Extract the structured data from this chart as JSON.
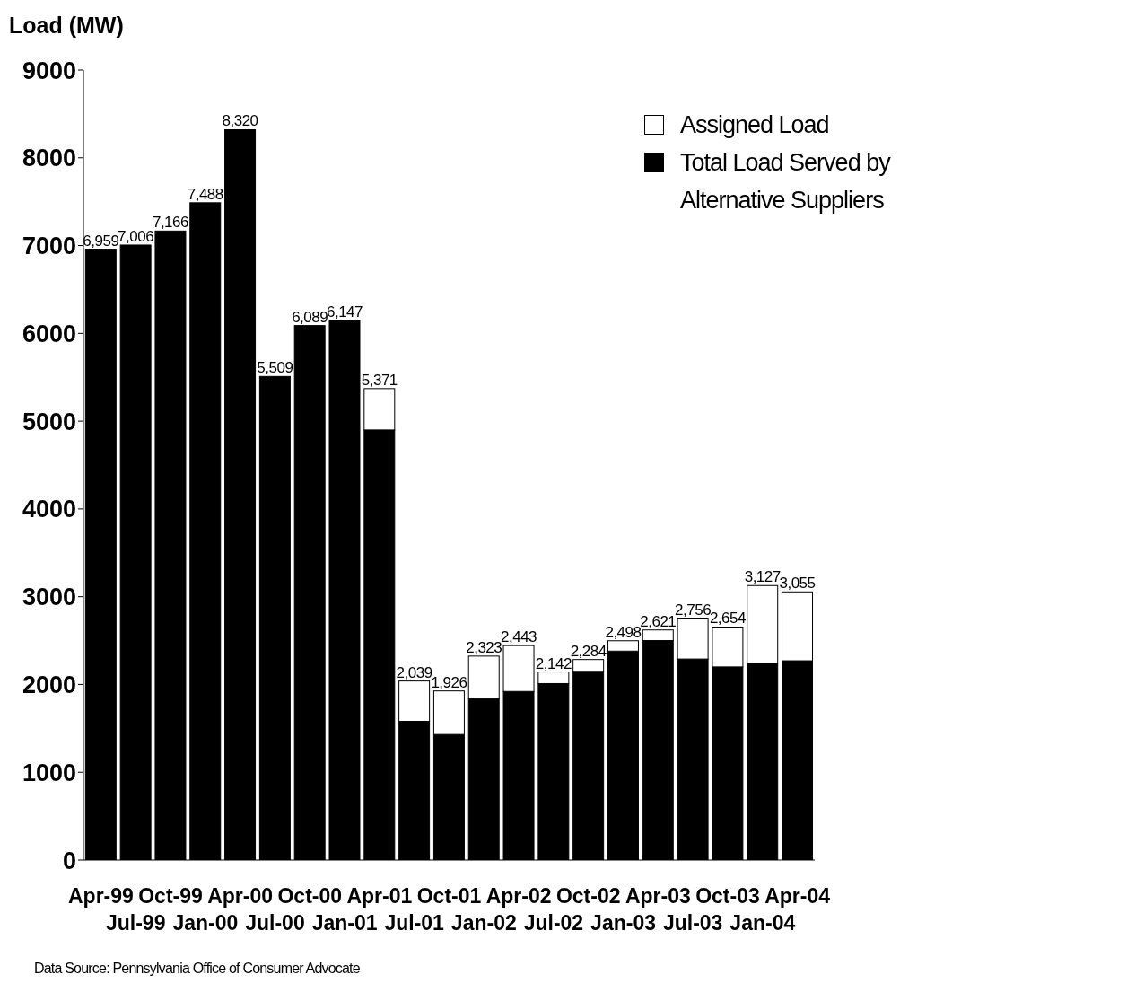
{
  "chart_data": {
    "type": "bar",
    "stacked": true,
    "ylabel": "Load (MW)",
    "categories": [
      "Apr-99",
      "Jul-99",
      "Oct-99",
      "Jan-00",
      "Apr-00",
      "Jul-00",
      "Oct-00",
      "Jan-01",
      "Apr-01",
      "Jul-01",
      "Oct-01",
      "Jan-02",
      "Apr-02",
      "Jul-02",
      "Oct-02",
      "Jan-03",
      "Apr-03",
      "Jul-03",
      "Oct-03",
      "Jan-04",
      "Apr-04"
    ],
    "series": [
      {
        "name": "Total Load Served by Alternative Suppliers",
        "color": "#000000",
        "values": [
          6959,
          7006,
          7166,
          7488,
          8320,
          5509,
          6089,
          6147,
          4900,
          1580,
          1430,
          1840,
          1920,
          2010,
          2150,
          2380,
          2500,
          2290,
          2200,
          2240,
          2270
        ]
      },
      {
        "name": "Assigned Load",
        "color": "#ffffff",
        "values": [
          0,
          0,
          0,
          0,
          0,
          0,
          0,
          0,
          471,
          459,
          496,
          483,
          523,
          132,
          134,
          118,
          121,
          466,
          454,
          887,
          785
        ]
      }
    ],
    "totals": [
      "6,959",
      "7,006",
      "7,166",
      "7,488",
      "8,320",
      "5,509",
      "6,089",
      "6,147",
      "5,371",
      "2,039",
      "1,926",
      "2,323",
      "2,443",
      "2,142",
      "2,284",
      "2,498",
      "2,621",
      "2,756",
      "2,654",
      "3,127",
      "3,055"
    ],
    "ylim": [
      0,
      9000
    ],
    "yticks": [
      0,
      1000,
      2000,
      3000,
      4000,
      5000,
      6000,
      7000,
      8000,
      9000
    ],
    "grid": false,
    "legend": "top right",
    "annotations": [
      "Data Source: Pennsylvania Office of Consumer Advocate"
    ]
  }
}
